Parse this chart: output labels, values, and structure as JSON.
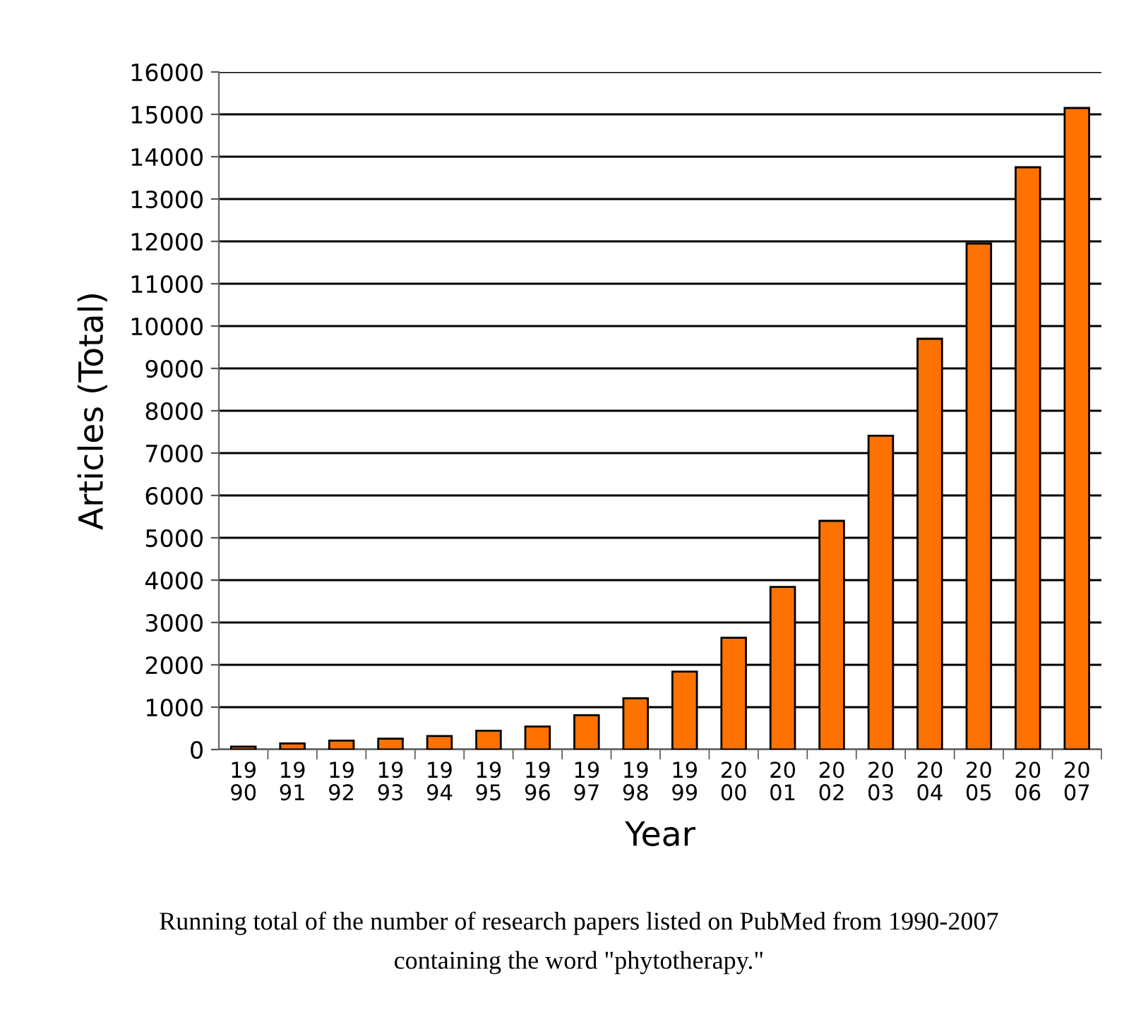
{
  "chart_data": {
    "type": "bar",
    "xlabel": "Year",
    "ylabel": "Articles (Total)",
    "categories": [
      "19\n90",
      "19\n91",
      "19\n92",
      "19\n93",
      "19\n94",
      "19\n95",
      "19\n96",
      "19\n97",
      "19\n98",
      "19\n99",
      "20\n00",
      "20\n01",
      "20\n02",
      "20\n03",
      "20\n04",
      "20\n05",
      "20\n06",
      "20\n07"
    ],
    "values": [
      70,
      145,
      210,
      255,
      320,
      445,
      545,
      810,
      1210,
      1840,
      2640,
      3840,
      5400,
      7410,
      9700,
      11950,
      13750,
      15150
    ],
    "color": "#ff7200",
    "ylim": [
      0,
      16000
    ],
    "yticks": [
      0,
      1000,
      2000,
      3000,
      4000,
      5000,
      6000,
      7000,
      8000,
      9000,
      10000,
      11000,
      12000,
      13000,
      14000,
      15000,
      16000
    ],
    "grid": "y",
    "annotations": [
      "Running total of the number of research papers listed on PubMed from 1990-2007\ncontaining the word \"phytotherapy.\""
    ]
  }
}
